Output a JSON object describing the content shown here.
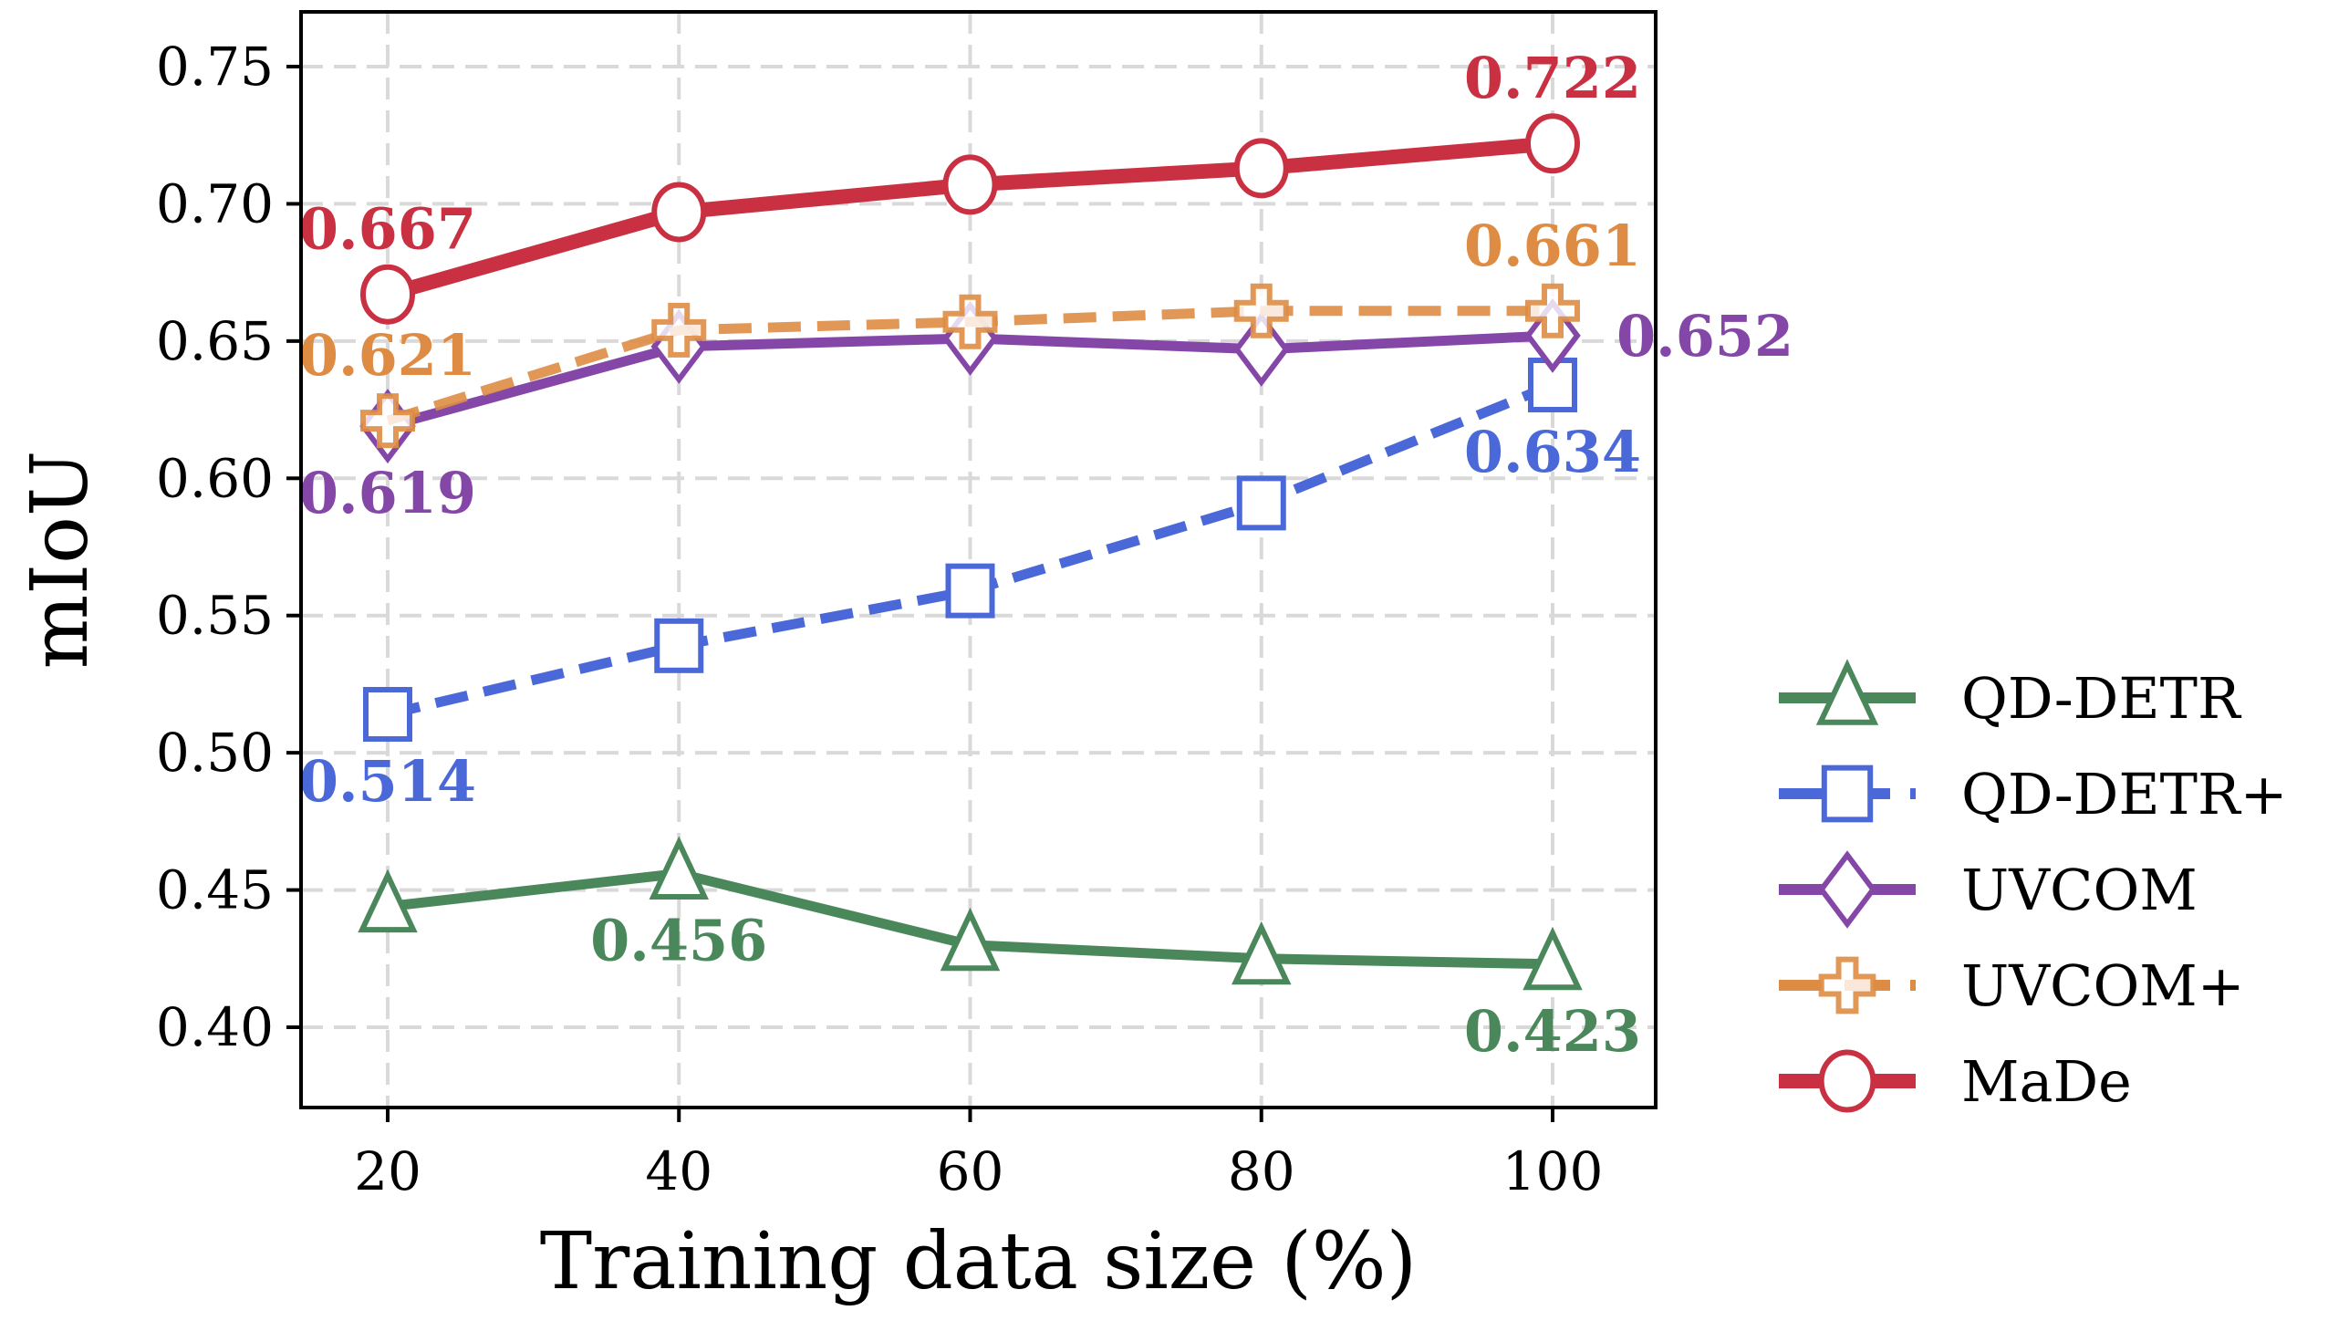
{
  "chart_data": {
    "type": "line",
    "title": "",
    "xlabel": "Training data size (%)",
    "ylabel": "mIoU",
    "x": [
      20,
      40,
      60,
      80,
      100
    ],
    "xticks": [
      "20",
      "40",
      "60",
      "80",
      "100"
    ],
    "yticks": [
      "0.40",
      "0.45",
      "0.50",
      "0.55",
      "0.60",
      "0.65",
      "0.70",
      "0.75"
    ],
    "ytick_values": [
      0.4,
      0.45,
      0.5,
      0.55,
      0.6,
      0.65,
      0.7,
      0.75
    ],
    "xlim": [
      13,
      107
    ],
    "ylim": [
      0.37,
      0.77
    ],
    "grid": true,
    "legend_position": "right-bottom, outside",
    "series": [
      {
        "name": "QD-DETR",
        "values": [
          0.444,
          0.456,
          0.43,
          0.425,
          0.423
        ],
        "color": "#4a875a",
        "marker": "triangle",
        "linestyle": "solid",
        "annotations": [
          {
            "index": 1,
            "text": "0.456",
            "placement": "below"
          },
          {
            "index": 4,
            "text": "0.423",
            "placement": "below"
          }
        ]
      },
      {
        "name": "QD-DETR+",
        "values": [
          0.514,
          0.539,
          0.559,
          0.591,
          0.634
        ],
        "color": "#4a68d8",
        "marker": "square",
        "linestyle": "dashed",
        "annotations": [
          {
            "index": 0,
            "text": "0.514",
            "placement": "below"
          },
          {
            "index": 4,
            "text": "0.634",
            "placement": "below"
          }
        ]
      },
      {
        "name": "UVCOM",
        "values": [
          0.619,
          0.648,
          0.651,
          0.647,
          0.652
        ],
        "color": "#8447a8",
        "marker": "diamond",
        "linestyle": "solid",
        "annotations": [
          {
            "index": 0,
            "text": "0.619",
            "placement": "below"
          },
          {
            "index": 4,
            "text": "0.652",
            "placement": "right"
          }
        ]
      },
      {
        "name": "UVCOM+",
        "values": [
          0.621,
          0.654,
          0.657,
          0.661,
          0.661
        ],
        "color": "#de8c44",
        "marker": "plus",
        "linestyle": "dashed",
        "annotations": [
          {
            "index": 0,
            "text": "0.621",
            "placement": "above"
          },
          {
            "index": 4,
            "text": "0.661",
            "placement": "above"
          }
        ]
      },
      {
        "name": "MaDe",
        "values": [
          0.667,
          0.697,
          0.707,
          0.713,
          0.722
        ],
        "color": "#c93042",
        "marker": "circle",
        "linestyle": "solid",
        "annotations": [
          {
            "index": 0,
            "text": "0.667",
            "placement": "above"
          },
          {
            "index": 4,
            "text": "0.722",
            "placement": "above"
          }
        ]
      }
    ]
  }
}
